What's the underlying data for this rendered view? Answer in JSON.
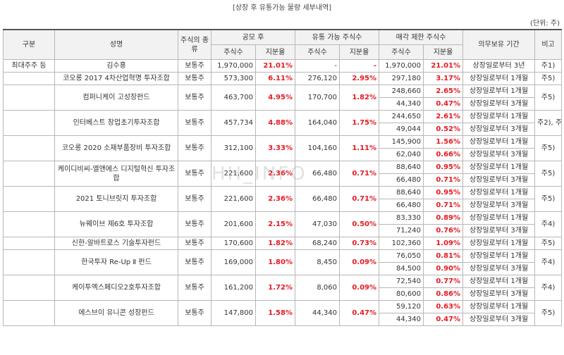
{
  "title": "[상장 후 유통가능 물량 세부내역]",
  "unit": "(단위: 주)",
  "watermark": "HH_INFO",
  "headers": {
    "category": "구분",
    "name": "성명",
    "type": "주식의 종류",
    "ipo": "공모 후",
    "tradable": "유통 가능 주식수",
    "restricted": "매각 제한 주식수",
    "lockup": "의무보유 기간",
    "note": "비고",
    "shares": "주식수",
    "ratio": "지분율"
  },
  "rows": [
    {
      "category": "최대주주 등",
      "name": "김수홍",
      "type": "보통주",
      "ipo_shares": "1,970,000",
      "ipo_ratio": "21.01%",
      "trade_shares": "-",
      "trade_ratio": "-",
      "sub": [
        {
          "shares": "1,970,000",
          "ratio": "21.01%",
          "period": "상장일로부터 3년"
        }
      ],
      "note": "주1)"
    },
    {
      "category": "",
      "name": "코오롱 2017 4차산업혁명 투자조합",
      "type": "보통주",
      "ipo_shares": "573,300",
      "ipo_ratio": "6.11%",
      "trade_shares": "276,120",
      "trade_ratio": "2.95%",
      "sub": [
        {
          "shares": "297,180",
          "ratio": "3.17%",
          "period": "상장일로부터 1개월"
        }
      ],
      "note": "주5)"
    },
    {
      "category": "",
      "name": "컴퍼니케이 고성장펀드",
      "type": "보통주",
      "ipo_shares": "463,700",
      "ipo_ratio": "4.95%",
      "trade_shares": "170,700",
      "trade_ratio": "1.82%",
      "sub": [
        {
          "shares": "248,660",
          "ratio": "2.65%",
          "period": "상장일로부터 1개월"
        },
        {
          "shares": "44,340",
          "ratio": "0.47%",
          "period": "상장일로부터 3개월"
        }
      ],
      "note": "주5)"
    },
    {
      "category": "",
      "name": "인터베스트 창업초기투자조합",
      "type": "보통주",
      "ipo_shares": "457,734",
      "ipo_ratio": "4.88%",
      "trade_shares": "164,040",
      "trade_ratio": "1.75%",
      "sub": [
        {
          "shares": "244,650",
          "ratio": "2.61%",
          "period": "상장일로부터 1개월"
        },
        {
          "shares": "49,044",
          "ratio": "0.52%",
          "period": "상장일로부터 3개월"
        }
      ],
      "note": "주2), 주4)"
    },
    {
      "category": "",
      "name": "코오롱 2020 소재부품장비 투자조합",
      "type": "보통주",
      "ipo_shares": "312,100",
      "ipo_ratio": "3.33%",
      "trade_shares": "104,160",
      "trade_ratio": "1.11%",
      "sub": [
        {
          "shares": "145,900",
          "ratio": "1.56%",
          "period": "상장일로부터 1개월"
        },
        {
          "shares": "62,040",
          "ratio": "0.66%",
          "period": "상장일로부터 3개월"
        }
      ],
      "note": "주5)"
    },
    {
      "category": "",
      "name": "케이디비씨-엘앤에스 디지털혁신 투자조합",
      "type": "보통주",
      "ipo_shares": "221,600",
      "ipo_ratio": "2.36%",
      "trade_shares": "66,480",
      "trade_ratio": "0.71%",
      "sub": [
        {
          "shares": "88,640",
          "ratio": "0.95%",
          "period": "상장일로부터 1개월"
        },
        {
          "shares": "66,480",
          "ratio": "0.71%",
          "period": "상장일로부터 3개월"
        }
      ],
      "note": "주5)"
    },
    {
      "category": "",
      "name": "2021 토니브릿지 투자조합",
      "type": "보통주",
      "ipo_shares": "221,600",
      "ipo_ratio": "2.36%",
      "trade_shares": "66,480",
      "trade_ratio": "0.71%",
      "sub": [
        {
          "shares": "88,640",
          "ratio": "0.95%",
          "period": "상장일로부터 1개월"
        },
        {
          "shares": "66,480",
          "ratio": "0.71%",
          "period": "상장일로부터 3개월"
        }
      ],
      "note": "주5)"
    },
    {
      "category": "",
      "name": "뉴웨이브 제6호 투자조합",
      "type": "보통주",
      "ipo_shares": "201,600",
      "ipo_ratio": "2.15%",
      "trade_shares": "47,030",
      "trade_ratio": "0.50%",
      "sub": [
        {
          "shares": "83,330",
          "ratio": "0.89%",
          "period": "상장일로부터 1개월"
        },
        {
          "shares": "71,240",
          "ratio": "0.76%",
          "period": "상장일로부터 3개월"
        }
      ],
      "note": "주4)"
    },
    {
      "category": "",
      "name": "신한-알바트로스 기술투자펀드",
      "type": "보통주",
      "ipo_shares": "170,600",
      "ipo_ratio": "1.82%",
      "trade_shares": "68,240",
      "trade_ratio": "0.73%",
      "sub": [
        {
          "shares": "102,360",
          "ratio": "1.09%",
          "period": "상장일로부터 1개월"
        }
      ],
      "note": "주5)"
    },
    {
      "category": "",
      "name": "한국투자 Re-Up Ⅱ 펀드",
      "type": "보통주",
      "ipo_shares": "169,000",
      "ipo_ratio": "1.80%",
      "trade_shares": "8,450",
      "trade_ratio": "0.09%",
      "sub": [
        {
          "shares": "76,050",
          "ratio": "0.81%",
          "period": "상장일로부터 1개월"
        },
        {
          "shares": "84,500",
          "ratio": "0.90%",
          "period": "상장일로부터 3개월"
        }
      ],
      "note": "주4)"
    },
    {
      "category": "",
      "name": "케이투엑스페디오2호투자조합",
      "type": "보통주",
      "ipo_shares": "161,200",
      "ipo_ratio": "1.72%",
      "trade_shares": "8,060",
      "trade_ratio": "0.09%",
      "sub": [
        {
          "shares": "72,540",
          "ratio": "0.77%",
          "period": "상장일로부터 1개월"
        },
        {
          "shares": "80,600",
          "ratio": "0.86%",
          "period": "상장일로부터 3개월"
        }
      ],
      "note": "주4)"
    },
    {
      "category": "",
      "name": "에스브이 유니콘 성장펀드",
      "type": "보통주",
      "ipo_shares": "147,800",
      "ipo_ratio": "1.58%",
      "trade_shares": "44,340",
      "trade_ratio": "0.47%",
      "sub": [
        {
          "shares": "59,120",
          "ratio": "0.63%",
          "period": "상장일로부터 1개월"
        },
        {
          "shares": "44,340",
          "ratio": "0.47%",
          "period": "상장일로부터 3개월"
        }
      ],
      "note": "주5)"
    }
  ]
}
